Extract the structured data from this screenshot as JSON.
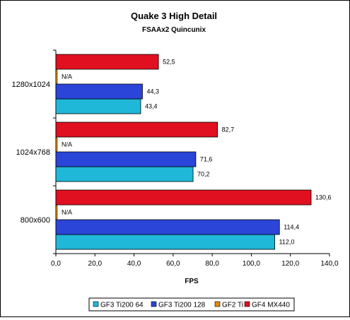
{
  "chart_data": {
    "type": "bar",
    "orientation": "horizontal",
    "title": "Quake 3 High Detail",
    "subtitle": "FSAAx2 Quincunix",
    "xlabel": "FPS",
    "ylabel": "",
    "xlim": [
      0,
      140
    ],
    "x_ticks": [
      "0,0",
      "20,0",
      "40,0",
      "60,0",
      "80,0",
      "100,0",
      "120,0",
      "140,0"
    ],
    "categories": [
      "1280x1024",
      "1024x768",
      "800x600"
    ],
    "series": [
      {
        "name": "GF3 Ti200 64",
        "color": "#1fb8d8",
        "values": [
          43.4,
          70.2,
          112.0
        ],
        "labels": [
          "43,4",
          "70,2",
          "112,0"
        ]
      },
      {
        "name": "GF3 Ti200 128",
        "color": "#2a45d8",
        "values": [
          44.3,
          71.6,
          114.4
        ],
        "labels": [
          "44,3",
          "71,6",
          "114,4"
        ]
      },
      {
        "name": "GF2 Ti",
        "color": "#e08a10",
        "values": [
          null,
          null,
          null
        ],
        "labels": [
          "N/A",
          "N/A",
          "N/A"
        ]
      },
      {
        "name": "GF4 MX440",
        "color": "#e01020",
        "values": [
          52.5,
          82.7,
          130.6
        ],
        "labels": [
          "52,5",
          "82,7",
          "130,6"
        ]
      }
    ],
    "legend_position": "bottom",
    "grid": false
  }
}
